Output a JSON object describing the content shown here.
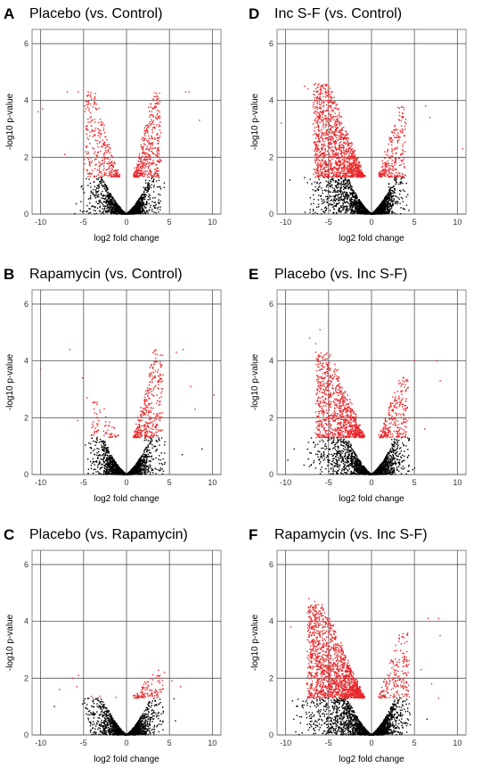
{
  "chart_data": [
    {
      "type": "scatter",
      "letter": "A",
      "title": "Placebo (vs. Control)",
      "xlabel": "log2 fold change",
      "ylabel": "-log10 p-value",
      "xlim": [
        -11,
        11
      ],
      "ylim": [
        0,
        6.5
      ],
      "xticks": [
        -10,
        -5,
        0,
        5,
        10
      ],
      "yticks": [
        0,
        2,
        4,
        6
      ],
      "grid": true,
      "significance_threshold": 1.3,
      "colors": {
        "significant": "#e8262a",
        "not_significant": "#000000"
      },
      "density": {
        "left_width": 3.2,
        "right_width": 2.4,
        "left_height": 4.3,
        "right_height": 4.3,
        "n_black": 1400,
        "n_red_left": 320,
        "n_red_right": 420,
        "x_extent": [
          -10,
          10
        ]
      },
      "series": [
        {
          "values": [
            [
              -9.8,
              3.7
            ],
            [
              -10.3,
              3.6
            ],
            [
              -6.9,
              4.3
            ],
            [
              -5.6,
              4.3
            ],
            [
              6.9,
              4.3
            ],
            [
              7.3,
              4.3
            ],
            [
              10.3,
              2.0
            ],
            [
              -7.2,
              2.1
            ],
            [
              8.5,
              3.3
            ],
            [
              -0.8,
              1.4
            ],
            [
              1.2,
              1.4
            ]
          ]
        }
      ]
    },
    {
      "type": "scatter",
      "letter": "D",
      "title": "Inc S-F (vs. Control)",
      "xlabel": "log2 fold change",
      "ylabel": "-log10 p-value",
      "xlim": [
        -11,
        11
      ],
      "ylim": [
        0,
        6.5
      ],
      "xticks": [
        -10,
        -5,
        0,
        5,
        10
      ],
      "yticks": [
        0,
        2,
        4,
        6
      ],
      "grid": true,
      "significance_threshold": 1.3,
      "colors": {
        "significant": "#e8262a",
        "not_significant": "#000000"
      },
      "density": {
        "left_width": 4.6,
        "right_width": 2.4,
        "left_height": 4.6,
        "right_height": 3.8,
        "n_black": 1800,
        "n_red_left": 1300,
        "n_red_right": 260,
        "x_extent": [
          -10.5,
          10.5
        ]
      },
      "series": [
        {
          "values": [
            [
              -7.8,
              4.5
            ],
            [
              -10.5,
              3.2
            ],
            [
              6.3,
              3.8
            ],
            [
              6.8,
              3.4
            ],
            [
              10.6,
              2.3
            ],
            [
              -9.5,
              1.2
            ],
            [
              -7.4,
              4.4
            ]
          ]
        }
      ]
    },
    {
      "type": "scatter",
      "letter": "B",
      "title": "Rapamycin (vs. Control)",
      "xlabel": "log2 fold change",
      "ylabel": "-log10 p-value",
      "xlim": [
        -11,
        11
      ],
      "ylim": [
        0,
        6.5
      ],
      "xticks": [
        -10,
        -5,
        0,
        5,
        10
      ],
      "yticks": [
        0,
        2,
        4,
        6
      ],
      "grid": true,
      "significance_threshold": 1.3,
      "colors": {
        "significant": "#e8262a",
        "not_significant": "#000000"
      },
      "density": {
        "left_width": 2.6,
        "right_width": 2.6,
        "left_height": 2.6,
        "right_height": 4.4,
        "n_black": 1500,
        "n_red_left": 70,
        "n_red_right": 360,
        "x_extent": [
          -10,
          10
        ]
      },
      "series": [
        {
          "values": [
            [
              -10.0,
              3.7
            ],
            [
              -6.6,
              4.4
            ],
            [
              -5.1,
              3.4
            ],
            [
              -4.6,
              2.7
            ],
            [
              -5.7,
              1.9
            ],
            [
              7.5,
              3.1
            ],
            [
              8.0,
              2.3
            ],
            [
              10.2,
              2.8
            ],
            [
              6.6,
              4.4
            ],
            [
              5.8,
              4.3
            ],
            [
              8.8,
              0.9
            ],
            [
              6.5,
              0.7
            ]
          ]
        }
      ]
    },
    {
      "type": "scatter",
      "letter": "E",
      "title": "Placebo (vs. Inc S-F)",
      "xlabel": "log2 fold change",
      "ylabel": "-log10 p-value",
      "xlim": [
        -11,
        11
      ],
      "ylim": [
        0,
        6.5
      ],
      "xticks": [
        -10,
        -5,
        0,
        5,
        10
      ],
      "yticks": [
        0,
        2,
        4,
        6
      ],
      "grid": true,
      "significance_threshold": 1.3,
      "colors": {
        "significant": "#e8262a",
        "not_significant": "#000000"
      },
      "density": {
        "left_width": 4.4,
        "right_width": 2.7,
        "left_height": 4.3,
        "right_height": 3.6,
        "n_black": 1700,
        "n_red_left": 950,
        "n_red_right": 260,
        "x_extent": [
          -10,
          10
        ]
      },
      "series": [
        {
          "values": [
            [
              -6.0,
              5.1
            ],
            [
              -7.2,
              4.8
            ],
            [
              5.0,
              4.0
            ],
            [
              7.6,
              4.0
            ],
            [
              8.0,
              3.3
            ],
            [
              -9.0,
              0.9
            ],
            [
              -6.5,
              4.6
            ],
            [
              6.2,
              1.6
            ]
          ]
        }
      ]
    },
    {
      "type": "scatter",
      "letter": "C",
      "title": "Placebo (vs. Rapamycin)",
      "xlabel": "log2 fold change",
      "ylabel": "-log10 p-value",
      "xlim": [
        -11,
        11
      ],
      "ylim": [
        0,
        6.5
      ],
      "xticks": [
        -10,
        -5,
        0,
        5,
        10
      ],
      "yticks": [
        0,
        2,
        4,
        6
      ],
      "grid": true,
      "significance_threshold": 1.3,
      "colors": {
        "significant": "#e8262a",
        "not_significant": "#000000"
      },
      "density": {
        "left_width": 3.0,
        "right_width": 2.6,
        "left_height": 1.4,
        "right_height": 2.3,
        "n_black": 1500,
        "n_red_left": 4,
        "n_red_right": 110,
        "x_extent": [
          -10,
          10
        ]
      },
      "series": [
        {
          "values": [
            [
              -5.6,
              2.1
            ],
            [
              -6.3,
              2.0
            ],
            [
              -5.8,
              1.7
            ],
            [
              -7.8,
              1.6
            ],
            [
              -8.4,
              1.0
            ],
            [
              4.4,
              2.2
            ],
            [
              6.3,
              1.7
            ],
            [
              5.3,
              1.9
            ],
            [
              3.9,
              2.1
            ],
            [
              5.7,
              0.5
            ]
          ]
        }
      ]
    },
    {
      "type": "scatter",
      "letter": "F",
      "title": "Rapamycin (vs. Inc S-F)",
      "xlabel": "log2 fold change",
      "ylabel": "-log10 p-value",
      "xlim": [
        -11,
        11
      ],
      "ylim": [
        0,
        6.5
      ],
      "xticks": [
        -10,
        -5,
        0,
        5,
        10
      ],
      "yticks": [
        0,
        2,
        4,
        6
      ],
      "grid": true,
      "significance_threshold": 1.3,
      "colors": {
        "significant": "#e8262a",
        "not_significant": "#000000"
      },
      "density": {
        "left_width": 5.2,
        "right_width": 2.7,
        "left_height": 4.6,
        "right_height": 3.6,
        "n_black": 1900,
        "n_red_left": 1600,
        "n_red_right": 200,
        "x_extent": [
          -10,
          10
        ]
      },
      "series": [
        {
          "values": [
            [
              -7.3,
              4.8
            ],
            [
              -6.6,
              4.7
            ],
            [
              -9.4,
              3.8
            ],
            [
              6.6,
              4.1
            ],
            [
              7.8,
              4.1
            ],
            [
              8.0,
              3.5
            ],
            [
              5.8,
              2.3
            ],
            [
              7.8,
              1.3
            ],
            [
              7.0,
              1.8
            ],
            [
              -9.2,
              1.2
            ]
          ]
        }
      ]
    }
  ]
}
